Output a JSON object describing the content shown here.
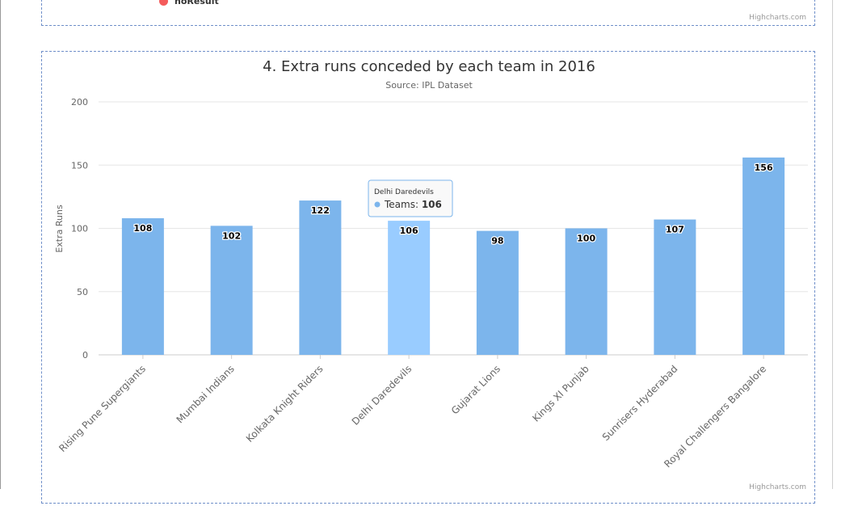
{
  "top_panel": {
    "legend_label": "noResult",
    "legend_color": "#f45b5b",
    "credits": "Highcharts.com"
  },
  "bottom_panel": {
    "credits": "Highcharts.com"
  },
  "tooltip": {
    "category": "Delhi Daredevils",
    "series": "Teams",
    "value": "106"
  },
  "chart_data": {
    "type": "bar",
    "title": "4. Extra runs conceded by each team in 2016",
    "subtitle": "Source: IPL Dataset",
    "ylabel": "Extra Runs",
    "xlabel": "",
    "ylim": [
      0,
      200
    ],
    "yticks": [
      0,
      50,
      100,
      150,
      200
    ],
    "grid": true,
    "bar_color": "#7cb5ec",
    "highlight_color": "#99ccff",
    "highlight_index": 3,
    "series": [
      {
        "name": "Teams",
        "values": [
          108,
          102,
          122,
          106,
          98,
          100,
          107,
          156
        ]
      }
    ],
    "categories": [
      "Rising Pune Supergiants",
      "Mumbai Indians",
      "Kolkata Knight Riders",
      "Delhi Daredevils",
      "Gujarat Lions",
      "Kings XI Punjab",
      "Sunrisers Hyderabad",
      "Royal Challengers Bangalore"
    ]
  }
}
